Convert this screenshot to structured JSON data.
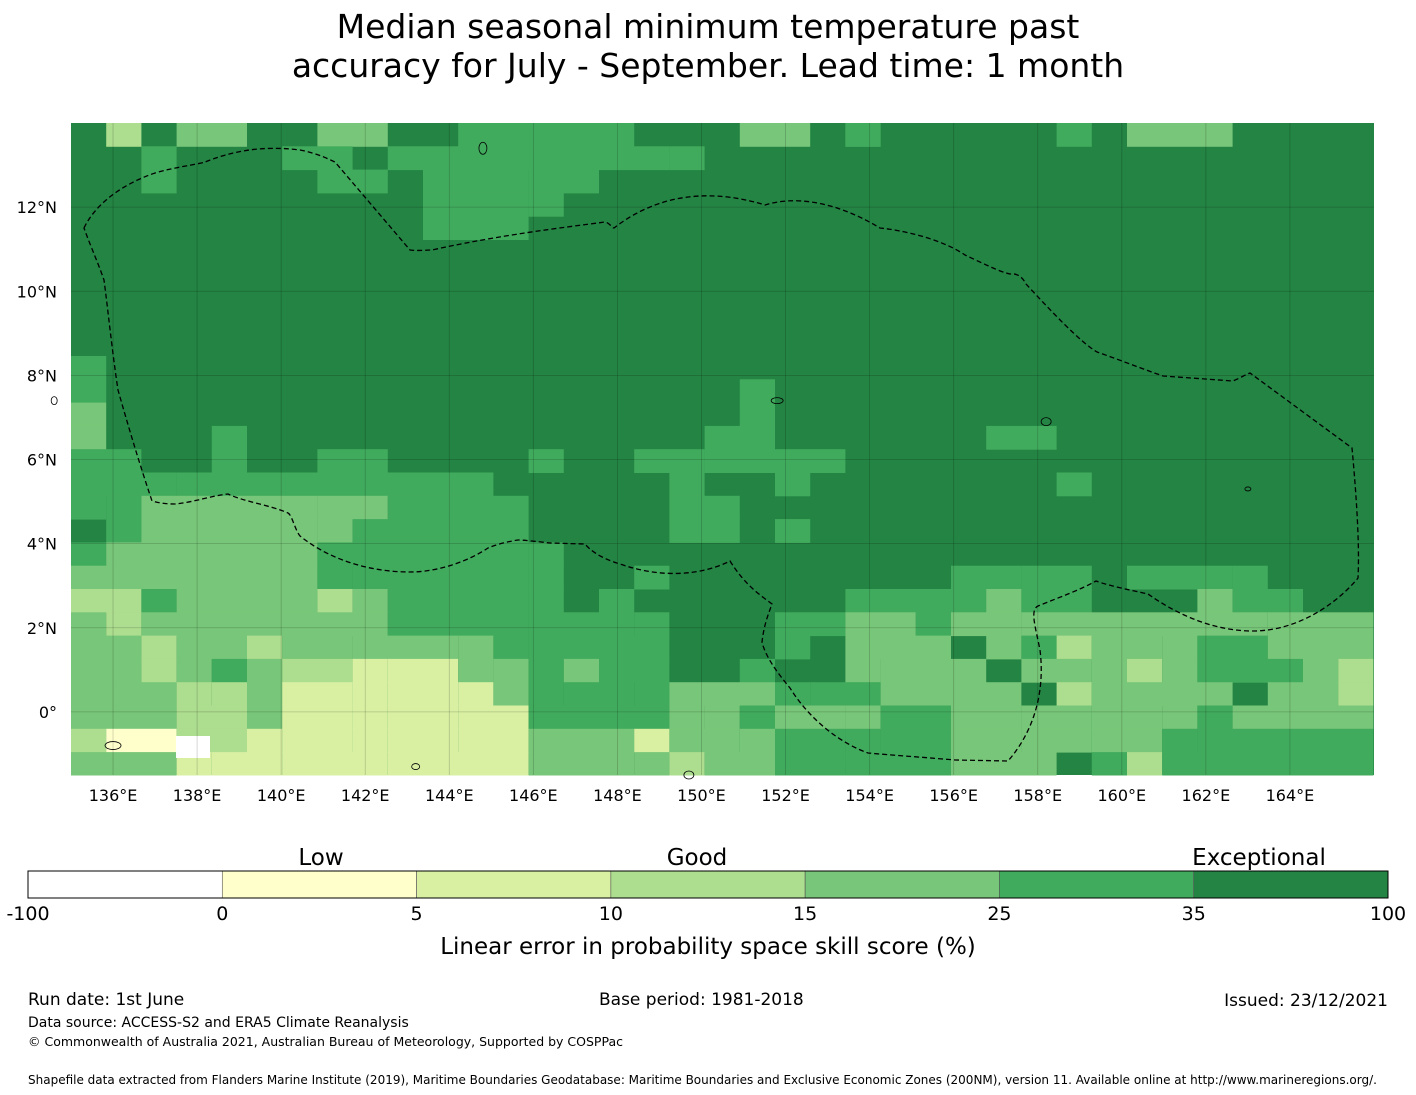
{
  "title": {
    "line1": "Median seasonal minimum temperature past",
    "line2": "accuracy for July - September. Lead time: 1 month"
  },
  "map": {
    "lon_range": [
      135.0,
      166.0
    ],
    "lat_range": [
      -1.5,
      14.0
    ],
    "grid_cell_deg": 0.833,
    "x_ticks": [
      "136°E",
      "138°E",
      "140°E",
      "142°E",
      "144°E",
      "146°E",
      "148°E",
      "150°E",
      "152°E",
      "154°E",
      "156°E",
      "158°E",
      "160°E",
      "162°E",
      "164°E"
    ],
    "y_ticks": [
      "12°N",
      "10°N",
      "8°N",
      "6°N",
      "4°N",
      "2°N",
      "0°"
    ],
    "gridlines": true,
    "boundary": "dashed EEZ outline",
    "colors": {
      "c1": "#ffffcc",
      "c2": "#d9f0a3",
      "c3": "#addd8e",
      "c4": "#78c679",
      "c5": "#41ab5d",
      "c6": "#238443"
    }
  },
  "colorbar": {
    "category_labels": [
      "Low",
      "Good",
      "Exceptional"
    ],
    "ticks": [
      "-100",
      "0",
      "5",
      "10",
      "15",
      "25",
      "35",
      "100"
    ],
    "colors": [
      "#ffffff",
      "#ffffcc",
      "#d9f0a3",
      "#addd8e",
      "#78c679",
      "#41ab5d",
      "#238443"
    ],
    "label": "Linear error in probability space skill score (%)"
  },
  "footer": {
    "run_date": "Run date: 1st June",
    "base_period": "Base period: 1981-2018",
    "issued": "Issued: 23/12/2021",
    "data_source": "Data source: ACCESS-S2 and ERA5 Climate Reanalysis",
    "copyright": "© Commonwealth of Australia 2021, Australian Bureau of Meteorology, Supported by COSPPac",
    "shapefile": "Shapefile data extracted from Flanders Marine Institute (2019), Maritime Boundaries Geodatabase: Maritime Boundaries and Exclusive Economic Zones (200NM), version 11. Available online at http://www.marineregions.org/."
  }
}
